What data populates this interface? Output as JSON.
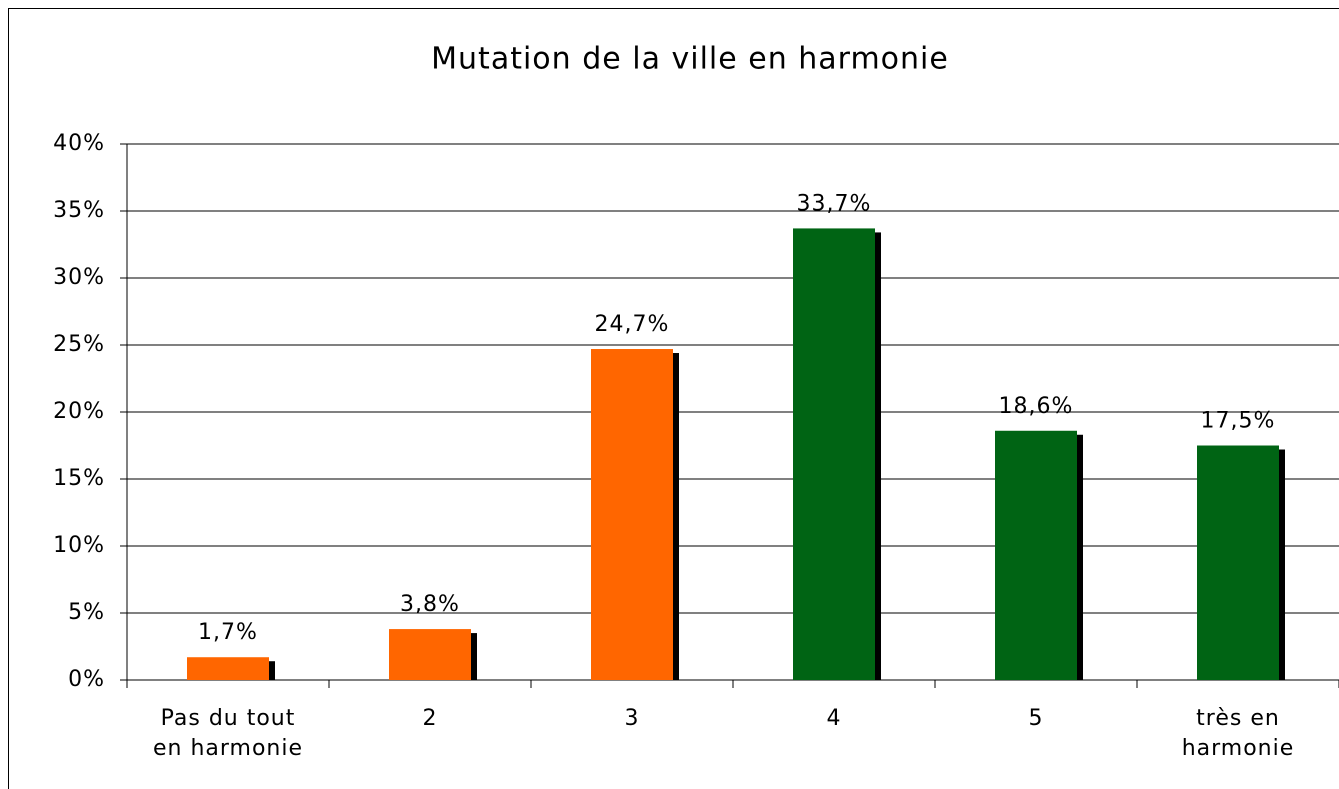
{
  "chart_data": {
    "type": "bar",
    "title": "Mutation de la ville en harmonie",
    "categories": [
      "Pas du tout\nen harmonie",
      "2",
      "3",
      "4",
      "5",
      "très en\nharmonie"
    ],
    "values": [
      1.7,
      3.8,
      24.7,
      33.7,
      18.6,
      17.5
    ],
    "value_labels": [
      "1,7%",
      "3,8%",
      "24,7%",
      "33,7%",
      "18,6%",
      "17,5%"
    ],
    "colors": [
      "#ff6600",
      "#ff6600",
      "#ff6600",
      "#006414",
      "#006414",
      "#006414"
    ],
    "ylim": [
      0,
      40
    ],
    "yticks": [
      {
        "value": 0,
        "label": "0%"
      },
      {
        "value": 5,
        "label": "5%"
      },
      {
        "value": 10,
        "label": "10%"
      },
      {
        "value": 15,
        "label": "15%"
      },
      {
        "value": 20,
        "label": "20%"
      },
      {
        "value": 25,
        "label": "25%"
      },
      {
        "value": 30,
        "label": "30%"
      },
      {
        "value": 35,
        "label": "35%"
      },
      {
        "value": 40,
        "label": "40%"
      }
    ],
    "grid": true
  }
}
